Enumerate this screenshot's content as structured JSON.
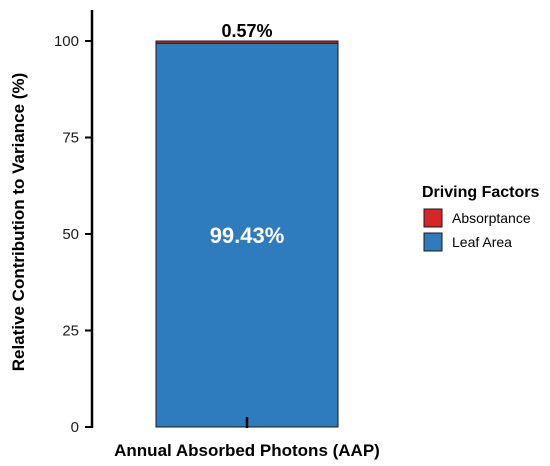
{
  "chart_data": {
    "type": "bar",
    "stacked": true,
    "categories": [
      "Annual Absorbed Photons (AAP)"
    ],
    "series": [
      {
        "name": "Leaf Area",
        "values": [
          99.43
        ],
        "color": "#2e7bbd"
      },
      {
        "name": "Absorptance",
        "values": [
          0.57
        ],
        "color": "#d62728"
      }
    ],
    "data_labels": [
      "99.43%",
      "0.57%"
    ],
    "xlabel": "Annual Absorbed Photons (AAP)",
    "ylabel": "Relative Contribution to Variance (%)",
    "ylim": [
      0,
      100
    ],
    "yticks": [
      "0",
      "25",
      "50",
      "75",
      "100"
    ],
    "grid": false,
    "legend": {
      "title": "Driving Factors",
      "placement": "right",
      "entries": [
        {
          "label": "Absorptance",
          "color": "#d62728"
        },
        {
          "label": "Leaf Area",
          "color": "#2e7bbd"
        }
      ]
    }
  }
}
